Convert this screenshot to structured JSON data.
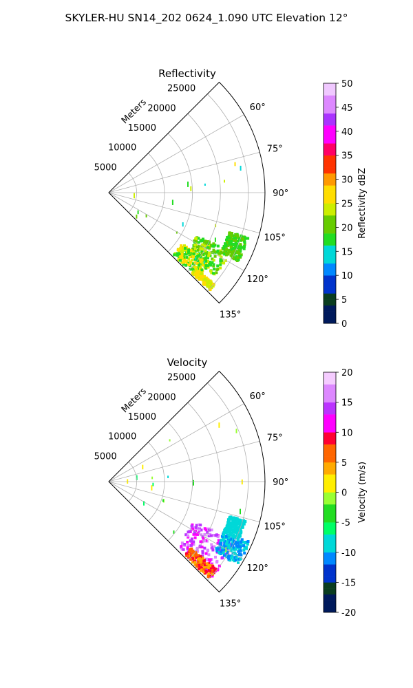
{
  "suptitle": "SKYLER-HU  SN14_202  0624_1.090 UTC Elevation 12°",
  "chart_data": [
    {
      "type": "polar-sector",
      "title": "Reflectivity",
      "radial_label": "Meters",
      "radial_ticks": [
        "5000",
        "10000",
        "15000",
        "20000",
        "25000"
      ],
      "radial_tick_values": [
        5000,
        10000,
        15000,
        20000,
        25000
      ],
      "rmax": 28000,
      "angular_ticks": [
        "60°",
        "75°",
        "90°",
        "105°",
        "120°",
        "135°"
      ],
      "angular_tick_values": [
        60,
        75,
        90,
        105,
        120,
        135
      ],
      "angle_range": [
        45,
        135
      ],
      "colorbar": {
        "label": "Reflectivity dBZ",
        "ticks": [
          "0",
          "5",
          "10",
          "15",
          "20",
          "25",
          "30",
          "35",
          "40",
          "45",
          "50"
        ],
        "tick_values": [
          0,
          5,
          10,
          15,
          20,
          25,
          30,
          35,
          40,
          45,
          50
        ],
        "range": [
          0,
          50
        ],
        "colors": [
          "#001a5c",
          "#0a3d20",
          "#0033cc",
          "#0088ff",
          "#00d8d8",
          "#22dd22",
          "#66cc00",
          "#ccee00",
          "#ffdd00",
          "#ff9900",
          "#ff3300",
          "#ff0066",
          "#ff00ff",
          "#aa33ff",
          "#dd88ff",
          "#f0c8ff"
        ]
      }
    },
    {
      "type": "polar-sector",
      "title": "Velocity",
      "radial_label": "Meters",
      "radial_ticks": [
        "5000",
        "10000",
        "15000",
        "20000",
        "25000"
      ],
      "radial_tick_values": [
        5000,
        10000,
        15000,
        20000,
        25000
      ],
      "rmax": 28000,
      "angular_ticks": [
        "60°",
        "75°",
        "90°",
        "105°",
        "120°",
        "135°"
      ],
      "angular_tick_values": [
        60,
        75,
        90,
        105,
        120,
        135
      ],
      "angle_range": [
        45,
        135
      ],
      "colorbar": {
        "label": "Velocity (m/s)",
        "ticks": [
          "-20",
          "-15",
          "-10",
          "-5",
          "0",
          "5",
          "10",
          "15",
          "20"
        ],
        "tick_values": [
          -20,
          -15,
          -10,
          -5,
          0,
          5,
          10,
          15,
          20
        ],
        "range": [
          -20,
          20
        ],
        "colors": [
          "#001a5c",
          "#0a3d20",
          "#0033cc",
          "#0088ff",
          "#00d8d8",
          "#00ff66",
          "#22dd22",
          "#99ff33",
          "#ffee00",
          "#ffaa00",
          "#ff6600",
          "#ff0033",
          "#ff00ff",
          "#bb33ff",
          "#dd88ff",
          "#f5ccff"
        ]
      }
    }
  ]
}
